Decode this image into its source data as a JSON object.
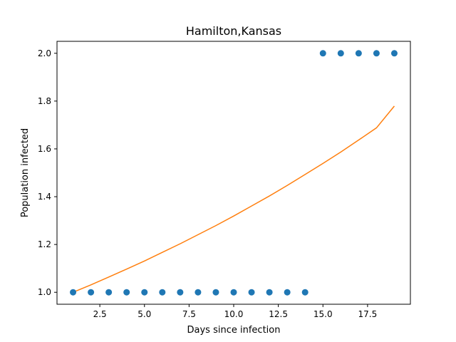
{
  "chart_data": {
    "type": "scatter",
    "title": "Hamilton,Kansas",
    "xlabel": "Days since infection",
    "ylabel": "Population infected",
    "xlim": [
      0.1,
      19.9
    ],
    "ylim": [
      0.95,
      2.05
    ],
    "xticks": [
      2.5,
      5.0,
      7.5,
      10.0,
      12.5,
      15.0,
      17.5
    ],
    "xtick_labels": [
      "2.5",
      "5.0",
      "7.5",
      "10.0",
      "12.5",
      "15.0",
      "17.5"
    ],
    "yticks": [
      1.0,
      1.2,
      1.4,
      1.6,
      1.8,
      2.0
    ],
    "ytick_labels": [
      "1.0",
      "1.2",
      "1.4",
      "1.6",
      "1.8",
      "2.0"
    ],
    "grid": false,
    "scatter": {
      "color": "#1f77b4",
      "x": [
        1,
        2,
        3,
        4,
        5,
        6,
        7,
        8,
        9,
        10,
        11,
        12,
        13,
        14,
        15,
        16,
        17,
        18,
        19
      ],
      "y": [
        1,
        1,
        1,
        1,
        1,
        1,
        1,
        1,
        1,
        1,
        1,
        1,
        1,
        1,
        2,
        2,
        2,
        2,
        2
      ]
    },
    "fit_line": {
      "color": "#ff7f0e",
      "x": [
        1,
        2,
        3,
        4,
        5,
        6,
        7,
        8,
        9,
        10,
        11,
        12,
        13,
        14,
        15,
        16,
        17,
        18,
        19
      ],
      "y": [
        1.0,
        1.031,
        1.064,
        1.097,
        1.131,
        1.167,
        1.203,
        1.241,
        1.279,
        1.319,
        1.361,
        1.403,
        1.447,
        1.493,
        1.539,
        1.587,
        1.637,
        1.688,
        1.779
      ]
    }
  }
}
